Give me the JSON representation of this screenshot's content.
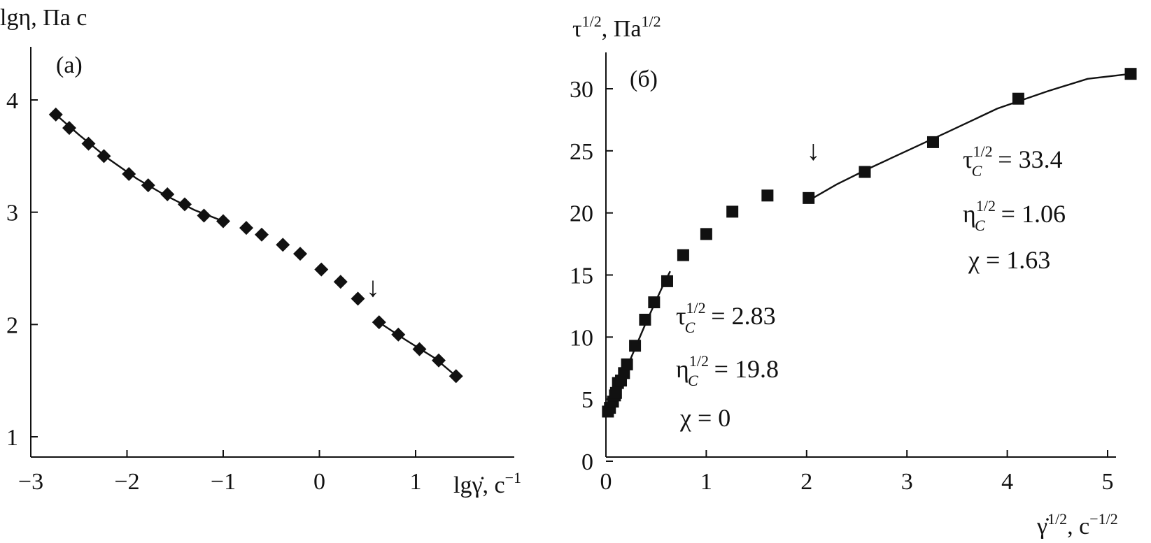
{
  "chart_data": [
    {
      "type": "scatter",
      "panel_label": "(a)",
      "xlabel": "lgγ̇, c⁻¹",
      "ylabel": "lgη, Па с",
      "xlim": [
        -3,
        1.8
      ],
      "ylim": [
        1,
        4.5
      ],
      "xticks": [
        -3,
        -2,
        -1,
        0,
        1
      ],
      "xtick_labels": [
        "−3",
        "−2",
        "−1",
        "0",
        "1"
      ],
      "yticks": [
        1,
        2,
        3,
        4
      ],
      "ytick_labels": [
        "1",
        "2",
        "3",
        "4"
      ],
      "marker": "diamond",
      "arrow_at": [
        0.57,
        2.25
      ],
      "series": [
        {
          "x": [
            -2.74,
            -2.6,
            -2.4,
            -2.24,
            -1.98,
            -1.78,
            -1.58,
            -1.4,
            -1.2,
            -1.0,
            -0.76,
            -0.6,
            -0.38,
            -0.2,
            0.02,
            0.22,
            0.4,
            0.62,
            0.82,
            1.04,
            1.24,
            1.42
          ],
          "y": [
            3.87,
            3.75,
            3.61,
            3.5,
            3.34,
            3.24,
            3.16,
            3.07,
            2.97,
            2.92,
            2.86,
            2.8,
            2.71,
            2.63,
            2.49,
            2.38,
            2.23,
            2.02,
            1.91,
            1.78,
            1.68,
            1.54
          ]
        }
      ],
      "fit_lines": [
        {
          "x": [
            -2.74,
            -2.5,
            -2.2,
            -1.9,
            -1.6,
            -1.3,
            -1.0
          ],
          "y": [
            3.87,
            3.69,
            3.48,
            3.3,
            3.15,
            3.02,
            2.92
          ]
        },
        {
          "x": [
            0.6,
            0.9,
            1.2,
            1.42
          ],
          "y": [
            2.03,
            1.86,
            1.7,
            1.54
          ]
        }
      ]
    },
    {
      "type": "scatter",
      "panel_label": "(б)",
      "xlabel": "γ̇¹ᐟ², c⁻¹ᐟ²",
      "ylabel": "τ¹ᐟ², Па¹ᐟ²",
      "xlim": [
        0,
        5.4
      ],
      "ylim": [
        0,
        33.5
      ],
      "xticks": [
        0,
        1,
        2,
        3,
        4,
        5
      ],
      "xtick_labels": [
        "0",
        "1",
        "2",
        "3",
        "4",
        "5"
      ],
      "yticks": [
        0,
        5,
        10,
        15,
        20,
        25,
        30
      ],
      "ytick_labels": [
        "0",
        "5",
        "10",
        "15",
        "20",
        "25",
        "30"
      ],
      "marker": "square",
      "arrow_at": [
        2.08,
        24.3
      ],
      "series": [
        {
          "x": [
            0.02,
            0.04,
            0.07,
            0.09,
            0.1,
            0.12,
            0.15,
            0.18,
            0.21,
            0.29,
            0.39,
            0.48,
            0.61,
            0.77,
            1.0,
            1.26,
            1.61,
            2.02,
            2.58,
            3.26,
            4.11,
            5.23
          ],
          "y": [
            4.0,
            4.3,
            4.8,
            5.3,
            5.5,
            6.3,
            6.5,
            7.1,
            7.8,
            9.3,
            11.4,
            12.8,
            14.5,
            16.6,
            18.3,
            20.1,
            21.4,
            21.2,
            23.3,
            25.7,
            29.2,
            31.2
          ]
        }
      ],
      "fit_lines": [
        {
          "x": [
            0.0,
            0.05,
            0.1,
            0.18,
            0.28,
            0.38,
            0.48,
            0.56,
            0.64
          ],
          "y": [
            3.8,
            4.6,
            5.5,
            7.0,
            8.9,
            10.8,
            12.6,
            14.0,
            15.3
          ]
        },
        {
          "x": [
            2.02,
            2.3,
            2.6,
            3.0,
            3.4,
            3.9,
            4.4,
            4.8,
            5.23
          ],
          "y": [
            21.0,
            22.3,
            23.5,
            25.0,
            26.5,
            28.4,
            29.8,
            30.8,
            31.2
          ]
        }
      ],
      "annotations": [
        {
          "lines": [
            "τ_C¹ᐟ² = 2.83",
            "η_C¹ᐟ² = 19.8",
            "χ = 0"
          ]
        },
        {
          "lines": [
            "τ_C¹ᐟ² = 33.4",
            "η_C¹ᐟ² = 1.06",
            "χ = 1.63"
          ]
        }
      ]
    }
  ],
  "annotations_text": {
    "left_block": {
      "tau_base": "τ",
      "tau_sup": "1/2",
      "tau_sub": "C",
      "tau_value": " = 2.83",
      "eta_base": "η",
      "eta_sup": "1/2",
      "eta_sub": "C",
      "eta_value": " = 19.8",
      "chi": "χ = 0"
    },
    "right_block": {
      "tau_base": "τ",
      "tau_sup": "1/2",
      "tau_sub": "C",
      "tau_value": " = 33.4",
      "eta_base": "η",
      "eta_sup": "1/2",
      "eta_sub": "C",
      "eta_value": " = 1.06",
      "chi": "χ = 1.63"
    }
  },
  "labels": {
    "a_panel": "(a)",
    "b_panel": "(б)",
    "a_ylabel": "lgη, Па с",
    "a_xlabel_lg": "lg",
    "a_xlabel_gamma": "γ̇",
    "a_xlabel_unit": ", c",
    "a_xlabel_exp": "−1",
    "b_ylabel_tau": "τ",
    "b_ylabel_sup": "1/2",
    "b_ylabel_unit": ", Па",
    "b_ylabel_unit_sup": "1/2",
    "b_xlabel_gamma": "γ̇",
    "b_xlabel_sup": "1/2",
    "b_xlabel_unit": ", c",
    "b_xlabel_unit_sup": "−1/2",
    "arrow": "↓"
  }
}
